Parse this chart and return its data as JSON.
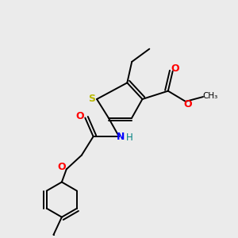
{
  "bg_color": "#ebebeb",
  "atom_colors": {
    "S": "#b8b800",
    "N": "#0000ff",
    "O": "#ff0000",
    "C": "#000000",
    "H": "#008080"
  },
  "bond_color": "#000000",
  "bond_width": 1.4,
  "figsize": [
    3.0,
    3.0
  ],
  "dpi": 100
}
